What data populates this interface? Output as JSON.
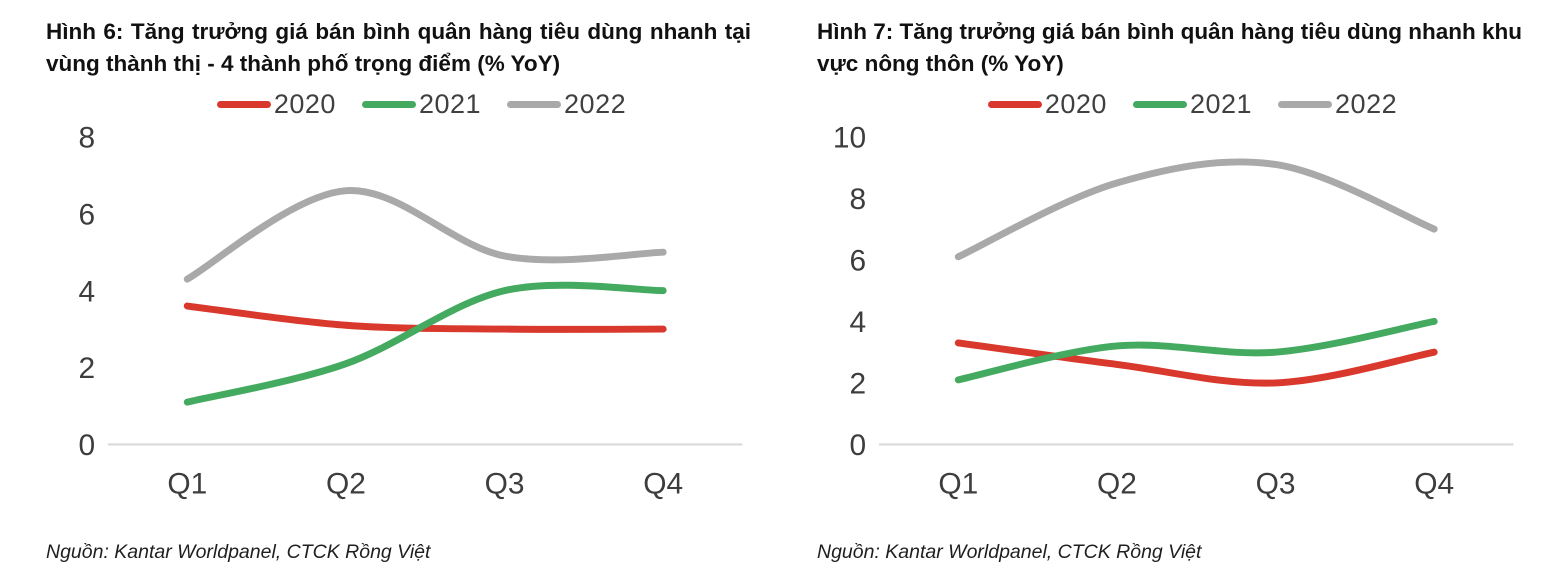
{
  "page": {
    "background": "#ffffff"
  },
  "chart_data": [
    {
      "type": "line",
      "title": "Hình 6: Tăng trưởng giá bán bình quân hàng tiêu dùng nhanh tại vùng thành thị - 4 thành phố trọng điểm (% YoY)",
      "categories": [
        "Q1",
        "Q2",
        "Q3",
        "Q4"
      ],
      "series": [
        {
          "name": "2020",
          "color": "#d8392c",
          "values": [
            3.6,
            3.1,
            3.0,
            3.0
          ]
        },
        {
          "name": "2021",
          "color": "#44aa60",
          "values": [
            1.1,
            2.1,
            4.0,
            4.0
          ]
        },
        {
          "name": "2022",
          "color": "#a9a9a9",
          "values": [
            4.3,
            6.6,
            4.9,
            5.0
          ]
        }
      ],
      "ylim": [
        0,
        8
      ],
      "yticks": [
        0,
        2,
        4,
        6,
        8
      ],
      "xlabel": "",
      "ylabel": "",
      "legend_position": "top",
      "grid": false,
      "axis_line_color": "#d9d9d9",
      "source": "Nguồn: Kantar Worldpanel, CTCK Rồng Việt"
    },
    {
      "type": "line",
      "title": "Hình 7: Tăng trưởng giá bán bình quân hàng tiêu dùng nhanh khu vực nông thôn (% YoY)",
      "categories": [
        "Q1",
        "Q2",
        "Q3",
        "Q4"
      ],
      "series": [
        {
          "name": "2020",
          "color": "#d8392c",
          "values": [
            3.3,
            2.6,
            2.0,
            3.0
          ]
        },
        {
          "name": "2021",
          "color": "#44aa60",
          "values": [
            2.1,
            3.2,
            3.0,
            4.0
          ]
        },
        {
          "name": "2022",
          "color": "#a9a9a9",
          "values": [
            6.1,
            8.5,
            9.1,
            7.0
          ]
        }
      ],
      "ylim": [
        0,
        10
      ],
      "yticks": [
        0,
        2,
        4,
        6,
        8,
        10
      ],
      "xlabel": "",
      "ylabel": "",
      "legend_position": "top",
      "grid": false,
      "axis_line_color": "#d9d9d9",
      "source": "Nguồn: Kantar Worldpanel, CTCK Rồng Việt"
    }
  ]
}
